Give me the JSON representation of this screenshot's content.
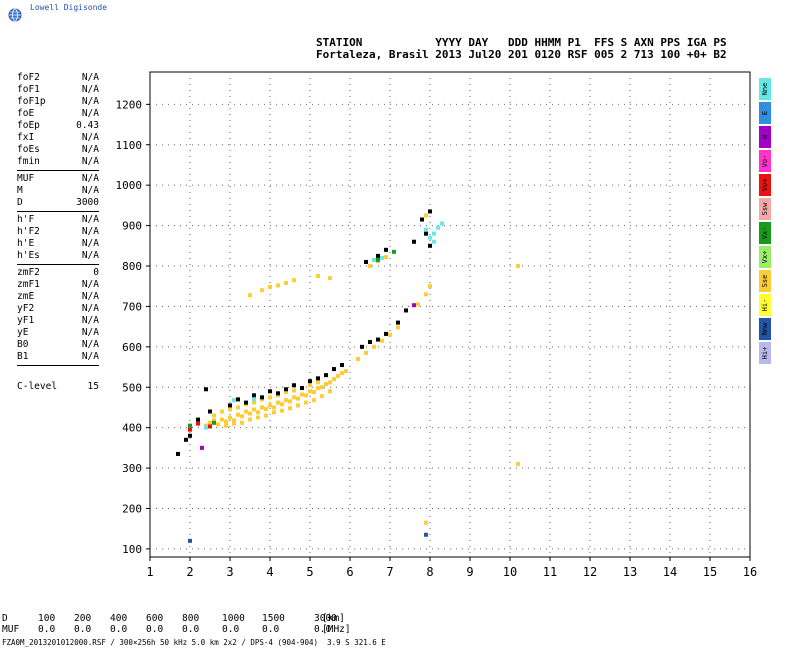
{
  "app": {
    "brand": "Lowell Digisonde"
  },
  "header": {
    "line1": "STATION           YYYY DAY   DDD HHMM P1  FFS S AXN PPS IGA PS",
    "line2": "Fortaleza, Brasil 2013 Jul20 201 0120 RSF 005 2 713 100 +0+ B2"
  },
  "params": {
    "group1": [
      {
        "k": "foF2",
        "v": "N/A"
      },
      {
        "k": "foF1",
        "v": "N/A"
      },
      {
        "k": "foF1p",
        "v": "N/A"
      },
      {
        "k": "foE",
        "v": "N/A"
      },
      {
        "k": "foEp",
        "v": "0.43"
      },
      {
        "k": "fxI",
        "v": "N/A"
      },
      {
        "k": "foEs",
        "v": "N/A"
      },
      {
        "k": "fmin",
        "v": "N/A"
      }
    ],
    "group2": [
      {
        "k": "MUF",
        "v": "N/A"
      },
      {
        "k": "M",
        "v": "N/A"
      },
      {
        "k": "D",
        "v": "3000"
      }
    ],
    "group3": [
      {
        "k": "h'F",
        "v": "N/A"
      },
      {
        "k": "h'F2",
        "v": "N/A"
      },
      {
        "k": "h'E",
        "v": "N/A"
      },
      {
        "k": "h'Es",
        "v": "N/A"
      }
    ],
    "group4": [
      {
        "k": "zmF2",
        "v": "0"
      },
      {
        "k": "zmF1",
        "v": "N/A"
      },
      {
        "k": "zmE",
        "v": "N/A"
      },
      {
        "k": "yF2",
        "v": "N/A"
      },
      {
        "k": "yF1",
        "v": "N/A"
      },
      {
        "k": "yE",
        "v": "N/A"
      },
      {
        "k": "B0",
        "v": "N/A"
      },
      {
        "k": "B1",
        "v": "N/A"
      }
    ],
    "clevel": {
      "k": "C-level",
      "v": "15"
    }
  },
  "legend": [
    {
      "label": "Nne",
      "color": "#66e8e8"
    },
    {
      "label": "E",
      "color": "#2f8fe0"
    },
    {
      "label": "W",
      "color": "#a000c8"
    },
    {
      "label": "Vo-",
      "color": "#ff33cc"
    },
    {
      "label": "Vo+",
      "color": "#ee1111"
    },
    {
      "label": "Ssw",
      "color": "#f4a8a8"
    },
    {
      "label": "Vx-",
      "color": "#1a9a1a"
    },
    {
      "label": "Vx+",
      "color": "#99ee66"
    },
    {
      "label": "Sse",
      "color": "#ffcc33"
    },
    {
      "label": "Hi-",
      "color": "#ffff33"
    },
    {
      "label": "Nnw",
      "color": "#2255aa"
    },
    {
      "label": "Hi+",
      "color": "#b8b8ee"
    }
  ],
  "distance_table": {
    "D_label": "D",
    "D_values": [
      "100",
      "200",
      "400",
      "600",
      "800",
      "1000",
      "1500",
      "3000"
    ],
    "D_unit": "[km]",
    "MUF_label": "MUF",
    "MUF_values": [
      "0.0",
      "0.0",
      "0.0",
      "0.0",
      "0.0",
      "0.0",
      "0.0",
      "0.0"
    ],
    "MUF_unit": "[MHz]"
  },
  "footer": "FZA0M_2013201012000.RSF / 300×256h 50 kHz 5.0 km 2x2 / DPS-4 (904-904)  3.9 S 321.6 E",
  "chart_data": {
    "type": "scatter",
    "xlim": [
      1,
      16
    ],
    "ylim": [
      80,
      1280
    ],
    "x_ticks": [
      1,
      2,
      3,
      4,
      5,
      6,
      7,
      8,
      9,
      10,
      11,
      12,
      13,
      14,
      15,
      16
    ],
    "y_ticks": [
      100,
      200,
      300,
      400,
      500,
      600,
      700,
      800,
      900,
      1000,
      1100,
      1200
    ],
    "grid": true,
    "series": [
      {
        "name": "Sse",
        "color": "#ffcc33",
        "points": [
          [
            2.4,
            405
          ],
          [
            2.5,
            412
          ],
          [
            2.6,
            418
          ],
          [
            2.7,
            408
          ],
          [
            2.8,
            420
          ],
          [
            2.9,
            415
          ],
          [
            3.0,
            425
          ],
          [
            3.1,
            418
          ],
          [
            3.2,
            432
          ],
          [
            3.3,
            428
          ],
          [
            3.4,
            440
          ],
          [
            3.5,
            435
          ],
          [
            3.6,
            445
          ],
          [
            3.7,
            438
          ],
          [
            3.8,
            450
          ],
          [
            3.9,
            446
          ],
          [
            4.0,
            455
          ],
          [
            4.1,
            450
          ],
          [
            4.2,
            462
          ],
          [
            4.3,
            458
          ],
          [
            4.4,
            468
          ],
          [
            4.5,
            465
          ],
          [
            4.6,
            475
          ],
          [
            4.7,
            472
          ],
          [
            4.8,
            482
          ],
          [
            4.9,
            480
          ],
          [
            5.0,
            490
          ],
          [
            5.1,
            488
          ],
          [
            5.2,
            498
          ],
          [
            5.3,
            500
          ],
          [
            5.4,
            508
          ],
          [
            5.5,
            512
          ],
          [
            5.6,
            520
          ],
          [
            5.7,
            528
          ],
          [
            5.8,
            535
          ],
          [
            5.9,
            540
          ],
          [
            2.6,
            430
          ],
          [
            2.8,
            440
          ],
          [
            3.0,
            445
          ],
          [
            3.2,
            450
          ],
          [
            3.4,
            458
          ],
          [
            3.6,
            462
          ],
          [
            3.8,
            470
          ],
          [
            4.0,
            475
          ],
          [
            4.2,
            480
          ],
          [
            4.4,
            488
          ],
          [
            4.6,
            492
          ],
          [
            4.8,
            498
          ],
          [
            5.0,
            505
          ],
          [
            5.2,
            512
          ],
          [
            2.9,
            405
          ],
          [
            3.1,
            410
          ],
          [
            3.3,
            412
          ],
          [
            3.5,
            420
          ],
          [
            3.7,
            425
          ],
          [
            3.9,
            430
          ],
          [
            4.1,
            438
          ],
          [
            4.3,
            442
          ],
          [
            4.5,
            448
          ],
          [
            4.7,
            455
          ],
          [
            4.9,
            462
          ],
          [
            5.1,
            468
          ],
          [
            5.3,
            478
          ],
          [
            5.5,
            490
          ],
          [
            6.2,
            570
          ],
          [
            6.4,
            585
          ],
          [
            6.6,
            600
          ],
          [
            6.8,
            615
          ],
          [
            7.0,
            630
          ],
          [
            7.2,
            648
          ],
          [
            7.7,
            705
          ],
          [
            7.9,
            730
          ],
          [
            8.0,
            750
          ],
          [
            3.5,
            728
          ],
          [
            3.8,
            740
          ],
          [
            4.0,
            748
          ],
          [
            4.2,
            752
          ],
          [
            4.4,
            758
          ],
          [
            4.6,
            765
          ],
          [
            5.2,
            775
          ],
          [
            5.5,
            770
          ],
          [
            6.5,
            800
          ],
          [
            6.7,
            812
          ],
          [
            6.9,
            822
          ],
          [
            7.9,
            925
          ],
          [
            8.0,
            935
          ],
          [
            10.2,
            800
          ],
          [
            10.2,
            310
          ],
          [
            7.9,
            165
          ]
        ]
      },
      {
        "name": "Black",
        "color": "#000000",
        "points": [
          [
            1.7,
            335
          ],
          [
            1.9,
            370
          ],
          [
            2.0,
            380
          ],
          [
            2.2,
            420
          ],
          [
            2.4,
            495
          ],
          [
            2.5,
            440
          ],
          [
            3.0,
            455
          ],
          [
            3.2,
            470
          ],
          [
            3.4,
            462
          ],
          [
            3.6,
            480
          ],
          [
            3.8,
            475
          ],
          [
            4.0,
            490
          ],
          [
            4.2,
            485
          ],
          [
            4.4,
            495
          ],
          [
            4.6,
            505
          ],
          [
            4.8,
            498
          ],
          [
            5.0,
            515
          ],
          [
            5.2,
            522
          ],
          [
            5.4,
            530
          ],
          [
            5.6,
            545
          ],
          [
            5.8,
            555
          ],
          [
            6.3,
            600
          ],
          [
            6.5,
            612
          ],
          [
            6.7,
            618
          ],
          [
            6.9,
            632
          ],
          [
            7.2,
            660
          ],
          [
            7.4,
            690
          ],
          [
            6.4,
            810
          ],
          [
            6.7,
            825
          ],
          [
            6.9,
            840
          ],
          [
            7.6,
            860
          ],
          [
            7.9,
            880
          ],
          [
            8.0,
            850
          ],
          [
            7.8,
            915
          ],
          [
            8.0,
            935
          ]
        ]
      },
      {
        "name": "Nne",
        "color": "#66e8e8",
        "points": [
          [
            8.0,
            870
          ],
          [
            8.1,
            880
          ],
          [
            8.2,
            895
          ],
          [
            8.3,
            905
          ],
          [
            7.9,
            890
          ],
          [
            8.1,
            860
          ],
          [
            6.6,
            815
          ],
          [
            6.8,
            820
          ],
          [
            3.1,
            468
          ],
          [
            3.6,
            470
          ],
          [
            2.4,
            400
          ]
        ]
      },
      {
        "name": "Vx-",
        "color": "#1a9a1a",
        "points": [
          [
            2.0,
            405
          ],
          [
            6.7,
            815
          ],
          [
            7.1,
            835
          ],
          [
            2.6,
            412
          ]
        ]
      },
      {
        "name": "Vo+",
        "color": "#ee1111",
        "points": [
          [
            2.2,
            410
          ],
          [
            2.5,
            403
          ],
          [
            2.0,
            395
          ]
        ]
      },
      {
        "name": "Nnw",
        "color": "#2255aa",
        "points": [
          [
            2.0,
            120
          ],
          [
            7.9,
            135
          ]
        ]
      },
      {
        "name": "W",
        "color": "#a000c8",
        "points": [
          [
            7.6,
            703
          ],
          [
            2.3,
            350
          ]
        ]
      }
    ]
  }
}
